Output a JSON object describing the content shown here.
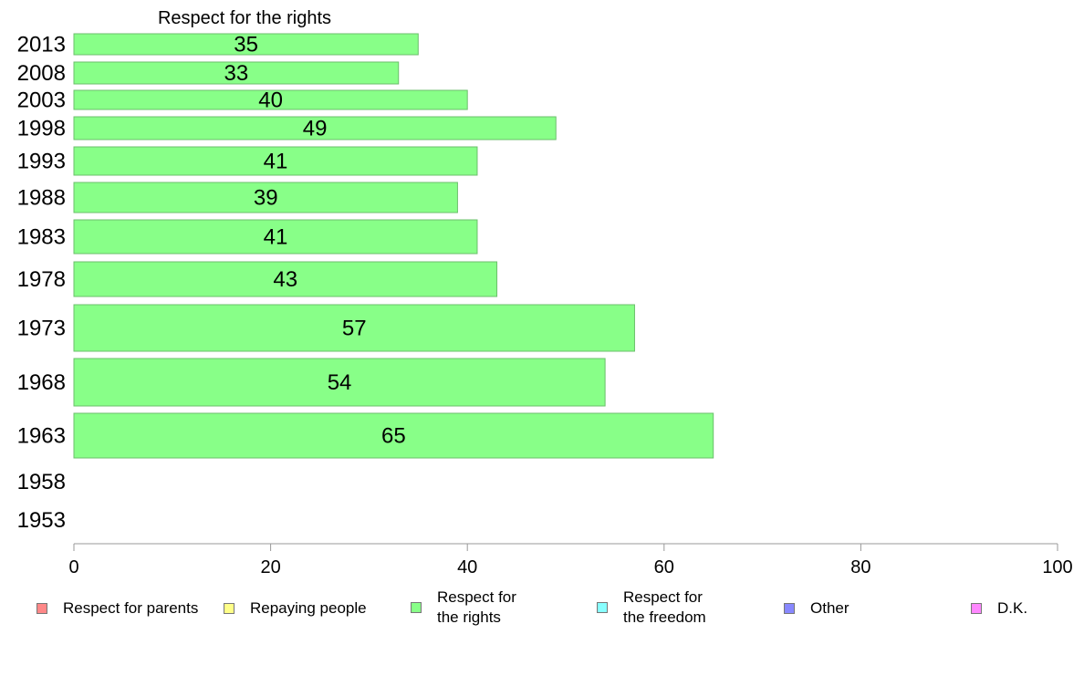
{
  "chart_data": {
    "type": "bar",
    "orientation": "horizontal",
    "title": "Respect for the rights",
    "categories": [
      "2013",
      "2008",
      "2003",
      "1998",
      "1993",
      "1988",
      "1983",
      "1978",
      "1973",
      "1968",
      "1963",
      "1958",
      "1953"
    ],
    "values": [
      35,
      33,
      40,
      49,
      41,
      39,
      41,
      43,
      57,
      54,
      65,
      null,
      null
    ],
    "data_labels": [
      "35",
      "33",
      "40",
      "49",
      "41",
      "39",
      "41",
      "43",
      "57",
      "54",
      "65",
      "",
      ""
    ],
    "xlim": [
      0,
      100
    ],
    "x_ticks": [
      "0",
      "20",
      "40",
      "60",
      "80",
      "100"
    ],
    "bar_color": "#88ff88",
    "legend_position": "bottom",
    "legend": [
      {
        "label": "Respect for parents",
        "color": "#ff8888"
      },
      {
        "label": "Repaying people",
        "color": "#ffff88"
      },
      {
        "label": "Respect for\nthe rights",
        "color": "#88ff88"
      },
      {
        "label": "Respect for\nthe freedom",
        "color": "#88ffff"
      },
      {
        "label": "Other",
        "color": "#8888ff"
      },
      {
        "label": "D.K.",
        "color": "#ff88ff"
      }
    ]
  }
}
